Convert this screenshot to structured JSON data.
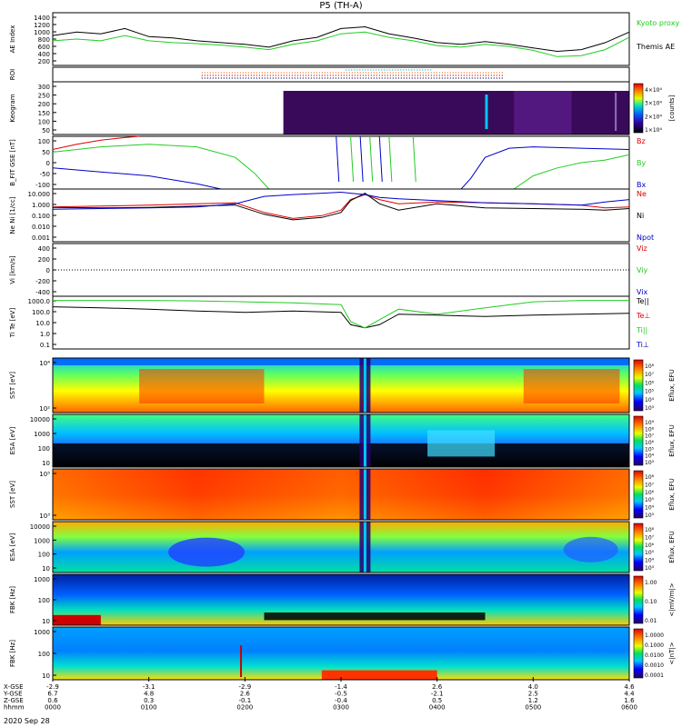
{
  "title": "P5 (TH-A)",
  "date": "2020 Sep 28",
  "time_axis": {
    "ticks": [
      "0000",
      "0100",
      "0200",
      "0300",
      "0400",
      "0500",
      "0600"
    ],
    "rows": [
      {
        "label": "X-GSE",
        "values": [
          "-2.9",
          "-3.1",
          "-2.9",
          "-1.4",
          "2.6",
          "4.0",
          "4.6"
        ]
      },
      {
        "label": "Y-GSE",
        "values": [
          "6.7",
          "4.8",
          "2.6",
          "-0.5",
          "-2.1",
          "2.5",
          "4.4"
        ]
      },
      {
        "label": "Z-GSE",
        "values": [
          "0.6",
          "0.3",
          "-0.1",
          "-0.4",
          "0.5",
          "1.2",
          "1.6"
        ]
      },
      {
        "label": "hhmm",
        "values": [
          "0000",
          "0100",
          "0200",
          "0300",
          "0400",
          "0500",
          "0600"
        ]
      }
    ]
  },
  "colors": {
    "black": "#000000",
    "red": "#dd0000",
    "green": "#22cc22",
    "blue": "#0000cc",
    "cyan": "#00bbcc",
    "orange": "#ff6600"
  },
  "chart_data": [
    {
      "type": "line",
      "panel": "ae",
      "ylabel": "AE Index",
      "yticks": [
        "1400",
        "1200",
        "1000",
        "800",
        "600",
        "400",
        "200"
      ],
      "ylim": [
        0,
        1500
      ],
      "legend": [
        "Kyoto proxy AE",
        "Themis AE"
      ],
      "series": [
        {
          "name": "Themis AE",
          "color": "#000000",
          "x": [
            0.0,
            0.25,
            0.5,
            0.75,
            1.0,
            1.25,
            1.5,
            1.75,
            2.0,
            2.25,
            2.5,
            2.75,
            3.0,
            3.25,
            3.5,
            3.75,
            4.0,
            4.25,
            4.5,
            4.75,
            5.0,
            5.25,
            5.5,
            5.75,
            6.0
          ],
          "y": [
            850,
            950,
            900,
            1050,
            820,
            780,
            700,
            650,
            600,
            520,
            700,
            800,
            1050,
            1100,
            900,
            780,
            650,
            600,
            680,
            600,
            500,
            400,
            450,
            650,
            950
          ]
        },
        {
          "name": "Kyoto proxy AE",
          "color": "#22cc22",
          "x": [
            0.0,
            0.25,
            0.5,
            0.75,
            1.0,
            1.25,
            1.5,
            1.75,
            2.0,
            2.25,
            2.5,
            2.75,
            3.0,
            3.25,
            3.5,
            3.75,
            4.0,
            4.25,
            4.5,
            4.75,
            5.0,
            5.25,
            5.5,
            5.75,
            6.0
          ],
          "y": [
            700,
            750,
            700,
            850,
            700,
            650,
            620,
            580,
            520,
            450,
            600,
            700,
            900,
            950,
            800,
            700,
            560,
            520,
            600,
            540,
            430,
            250,
            280,
            450,
            800
          ]
        }
      ]
    },
    {
      "type": "line",
      "panel": "roi",
      "ylabel": "ROI"
    },
    {
      "type": "heatmap",
      "panel": "keogram",
      "ylabel": "Keogram",
      "yticks": [
        "300",
        "250",
        "200",
        "150",
        "100",
        "50"
      ],
      "colorbar_label": "[counts]",
      "colorbar_ticks": [
        "4×10⁴",
        "3×10⁴",
        "2×10⁴",
        "1×10⁴"
      ]
    },
    {
      "type": "line",
      "panel": "bfit",
      "ylabel": "B_FIT GSE [nT]",
      "yticks": [
        "100",
        "50",
        "0",
        "-50",
        "-100"
      ],
      "ylim": [
        -100,
        100
      ],
      "legend": [
        "Bz",
        "By",
        "Bx"
      ],
      "series": [
        {
          "name": "Bz",
          "color": "#dd0000",
          "x": [
            0.0,
            0.25,
            0.5,
            0.75,
            0.9
          ],
          "y": [
            50,
            70,
            85,
            95,
            100
          ]
        },
        {
          "name": "By",
          "color": "#22cc22",
          "x": [
            0.0,
            0.5,
            1.0,
            1.5,
            1.9,
            2.1,
            2.25,
            4.8,
            5.0,
            5.25,
            5.5,
            5.75,
            6.0
          ],
          "y": [
            40,
            60,
            70,
            60,
            20,
            -40,
            -100,
            -100,
            -50,
            -20,
            0,
            10,
            30
          ]
        },
        {
          "name": "Bx",
          "color": "#0000cc",
          "x": [
            0.0,
            0.5,
            1.0,
            1.5,
            1.75,
            4.25,
            4.35,
            4.5,
            4.75,
            5.0,
            5.5,
            6.0
          ],
          "y": [
            -20,
            -35,
            -50,
            -80,
            -100,
            -100,
            -60,
            20,
            55,
            60,
            55,
            50
          ]
        }
      ]
    },
    {
      "type": "line",
      "panel": "density",
      "ylabel": "Ne Ni [1/cc]",
      "yticks": [
        "10.000",
        "1.000",
        "0.100",
        "0.010",
        "0.001"
      ],
      "ylim": [
        0.0005,
        50
      ],
      "yscale": "log",
      "legend": [
        "Ne",
        "Ni",
        "Npot"
      ],
      "series": [
        {
          "name": "Ne",
          "color": "#dd0000",
          "x": [
            0.0,
            0.5,
            1.0,
            1.5,
            1.9,
            2.2,
            2.5,
            2.8,
            3.0,
            3.1,
            3.25,
            3.4,
            3.6,
            4.0,
            4.5,
            5.0,
            5.5,
            5.75,
            6.0
          ],
          "y": [
            1.0,
            1.2,
            1.5,
            2.0,
            2.5,
            0.3,
            0.08,
            0.15,
            0.5,
            5.0,
            15.0,
            5.0,
            2.0,
            3.0,
            2.5,
            2.0,
            1.5,
            0.8,
            1.0
          ]
        },
        {
          "name": "Ni",
          "color": "#000000",
          "x": [
            0.0,
            0.5,
            1.0,
            1.5,
            1.9,
            2.2,
            2.5,
            2.8,
            3.0,
            3.1,
            3.25,
            3.4,
            3.6,
            4.0,
            4.5,
            5.0,
            5.5,
            5.75,
            6.0
          ],
          "y": [
            0.9,
            0.8,
            0.9,
            1.2,
            1.5,
            0.2,
            0.06,
            0.1,
            0.3,
            4.0,
            20.0,
            2.0,
            0.5,
            2.0,
            0.8,
            0.7,
            0.6,
            0.5,
            0.7
          ]
        },
        {
          "name": "Npot",
          "color": "#0000cc",
          "x": [
            0.0,
            0.5,
            1.0,
            1.5,
            1.9,
            2.2,
            2.5,
            2.8,
            3.0,
            3.1,
            3.25,
            3.4,
            3.6,
            4.0,
            4.5,
            5.0,
            5.5,
            5.75,
            6.0
          ],
          "y": [
            0.6,
            0.7,
            0.8,
            1.0,
            2.0,
            10.0,
            15.0,
            20.0,
            25.0,
            20.0,
            15.0,
            8.0,
            6.0,
            4.0,
            2.5,
            2.0,
            1.5,
            3.0,
            5.0
          ]
        }
      ]
    },
    {
      "type": "line",
      "panel": "velocity",
      "ylabel": "Vi [km/s]",
      "yticks": [
        "400",
        "200",
        "0",
        "-200",
        "-400"
      ],
      "ylim": [
        -500,
        500
      ],
      "legend": [
        "Viz",
        "Viy",
        "Vix"
      ]
    },
    {
      "type": "line",
      "panel": "temperature",
      "ylabel": "Ti Te [eV]",
      "yticks": [
        "1000.0",
        "100.0",
        "10.0",
        "1.0",
        "0.1"
      ],
      "ylim": [
        0.05,
        5000
      ],
      "yscale": "log",
      "legend": [
        "Te||",
        "Te⊥",
        "Ti||",
        "Ti⊥"
      ],
      "series": [
        {
          "name": "Te||",
          "color": "#000000",
          "x": [
            0.0,
            0.5,
            1.0,
            1.5,
            2.0,
            2.5,
            3.0,
            3.1,
            3.25,
            3.4,
            3.6,
            4.0,
            4.5,
            5.0,
            5.5,
            6.0
          ],
          "y": [
            500,
            400,
            300,
            200,
            150,
            200,
            150,
            10,
            5,
            10,
            100,
            80,
            60,
            80,
            100,
            120
          ]
        },
        {
          "name": "Ti||",
          "color": "#22cc22",
          "x": [
            0.0,
            0.5,
            1.0,
            1.5,
            2.0,
            2.5,
            3.0,
            3.1,
            3.25,
            3.4,
            3.6,
            4.0,
            4.5,
            5.0,
            5.5,
            6.0
          ],
          "y": [
            2000,
            2000,
            2000,
            1800,
            1500,
            1200,
            800,
            20,
            5,
            30,
            300,
            100,
            400,
            1500,
            2000,
            2000
          ]
        }
      ]
    },
    {
      "type": "heatmap",
      "panel": "sst_e",
      "ylabel": "SST [eV]",
      "yticks": [
        "10⁴",
        "10²"
      ],
      "colorbar_label": "Eflux, EFU",
      "colorbar_ticks": [
        "10⁸",
        "10⁷",
        "10⁶",
        "10⁵",
        "10⁴",
        "10³"
      ]
    },
    {
      "type": "heatmap",
      "panel": "esa_e",
      "ylabel": "ESA [eV]",
      "yticks": [
        "10000",
        "1000",
        "100",
        "10"
      ],
      "colorbar_label": "Eflux, EFU",
      "colorbar_ticks": [
        "10⁹",
        "10⁸",
        "10⁷",
        "10⁶",
        "10⁵",
        "10⁴",
        "10³"
      ]
    },
    {
      "type": "heatmap",
      "panel": "sst_i",
      "ylabel": "SST [eV]",
      "yticks": [
        "10⁵",
        "10³"
      ],
      "colorbar_label": "Eflux, EFU",
      "colorbar_ticks": [
        "10⁸",
        "10⁷",
        "10⁶",
        "10⁵",
        "10⁴",
        "10³"
      ]
    },
    {
      "type": "heatmap",
      "panel": "esa_i",
      "ylabel": "ESA [eV]",
      "yticks": [
        "10000",
        "1000",
        "100",
        "10"
      ],
      "colorbar_label": "Eflux, EFU",
      "colorbar_ticks": [
        "10⁸",
        "10⁷",
        "10⁶",
        "10⁵",
        "10⁴",
        "10³"
      ]
    },
    {
      "type": "heatmap",
      "panel": "fbk_e",
      "ylabel": "FBK [Hz]",
      "yticks": [
        "1000",
        "100",
        "10"
      ],
      "colorbar_label": "<|mV/m|>",
      "colorbar_ticks": [
        "1.00",
        "0.10",
        "0.01"
      ]
    },
    {
      "type": "heatmap",
      "panel": "fbk_b",
      "ylabel": "FBK [Hz]",
      "yticks": [
        "1000",
        "100",
        "10"
      ],
      "colorbar_label": "<|nT|>",
      "colorbar_ticks": [
        "1.0000",
        "0.1000",
        "0.0100",
        "0.0010",
        "0.0001"
      ]
    }
  ]
}
